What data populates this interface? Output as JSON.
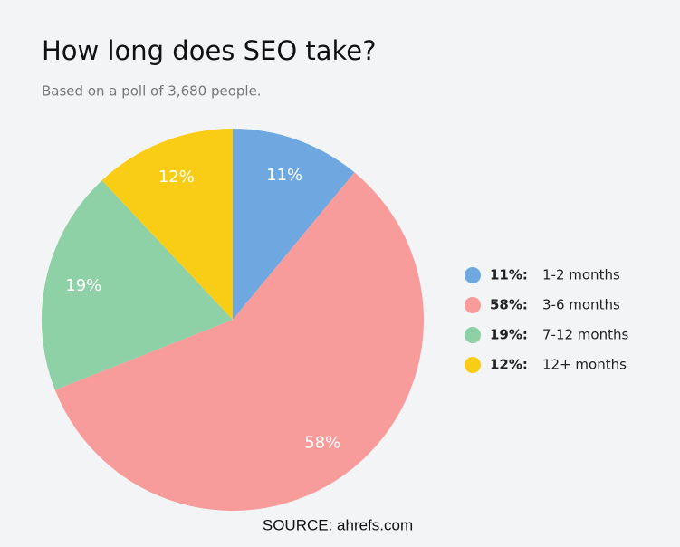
{
  "chart_data": {
    "type": "pie",
    "title": "How long does SEO take?",
    "subtitle": "Based on a poll of 3,680 people.",
    "source": "SOURCE: ahrefs.com",
    "categories": [
      "1-2 months",
      "3-6 months",
      "7-12 months",
      "12+ months"
    ],
    "values": [
      11,
      58,
      19,
      12
    ],
    "value_labels": [
      "11%",
      "58%",
      "19%",
      "12%"
    ],
    "legend_value_labels": [
      "11%:",
      "58%:",
      "19%:",
      "12%:"
    ],
    "colors": [
      "#6fa8e0",
      "#f89b9b",
      "#8ed1a6",
      "#f9cd16"
    ],
    "legend": "right"
  }
}
